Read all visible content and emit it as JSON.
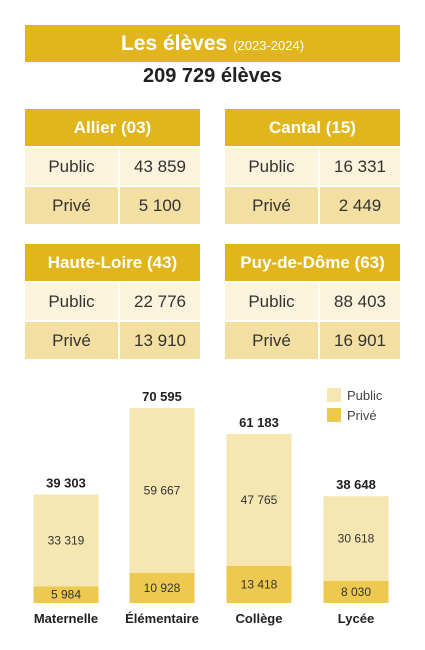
{
  "header": {
    "title": "Les élèves",
    "years": "(2023-2024)"
  },
  "total": "209 729 élèves",
  "departments": [
    {
      "name": "Allier (03)",
      "public_label": "Public",
      "public_value": "43 859",
      "prive_label": "Privé",
      "prive_value": "5 100"
    },
    {
      "name": "Cantal (15)",
      "public_label": "Public",
      "public_value": "16 331",
      "prive_label": "Privé",
      "prive_value": "2 449"
    },
    {
      "name": "Haute-Loire (43)",
      "public_label": "Public",
      "public_value": "22 776",
      "prive_label": "Privé",
      "prive_value": "13 910"
    },
    {
      "name": "Puy-de-Dôme (63)",
      "public_label": "Public",
      "public_value": "88 403",
      "prive_label": "Privé",
      "prive_value": "16 901"
    }
  ],
  "colors": {
    "accent": "#e1b61d",
    "public": "#f6e6b2",
    "prive": "#eec94f",
    "public_row": "#fbf3dc",
    "prive_row": "#f3dfa2"
  },
  "chart_data": {
    "type": "bar",
    "stacked": true,
    "categories": [
      "Maternelle",
      "Élémentaire",
      "Collège",
      "Lycée"
    ],
    "series": [
      {
        "name": "Public",
        "values": [
          33319,
          59667,
          47765,
          30618
        ],
        "labels": [
          "33 319",
          "59 667",
          "47 765",
          "30 618"
        ]
      },
      {
        "name": "Privé",
        "values": [
          5984,
          10928,
          13418,
          8030
        ],
        "labels": [
          "5 984",
          "10 928",
          "13 418",
          "8 030"
        ]
      }
    ],
    "totals": [
      39303,
      70595,
      61183,
      38648
    ],
    "total_labels": [
      "39 303",
      "70 595",
      "61 183",
      "38 648"
    ],
    "legend": [
      "Public",
      "Privé"
    ],
    "legend_position": "top-right",
    "ylim": [
      0,
      70595
    ],
    "grid": false
  }
}
